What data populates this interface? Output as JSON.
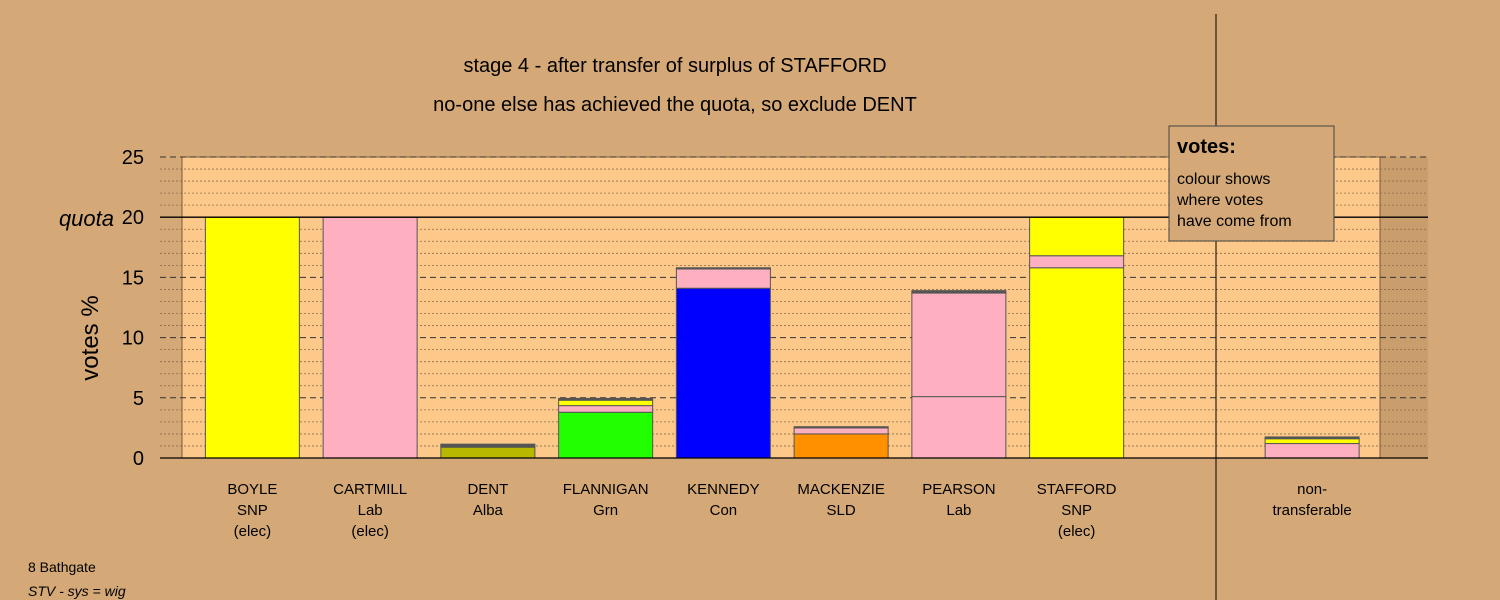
{
  "colors": {
    "background": "#d4a977",
    "plot_area": "#fcc98a",
    "side_shade": "#c99d6c",
    "SNP": "#ffff00",
    "Lab": "#ffb0c0",
    "Alba": "#b8b800",
    "Grn": "#22ff00",
    "Con": "#0000ff",
    "SLD": "#ff9000",
    "bar_top": "#555555"
  },
  "chart_data": {
    "type": "bar",
    "stacked": true,
    "title": "stage 4 - after transfer of surplus of STAFFORD",
    "subtitle": "no-one else has achieved the quota, so exclude DENT",
    "ylabel": "votes %",
    "ylim": [
      0,
      25
    ],
    "yticks": [
      "0",
      "5",
      "10",
      "15",
      "20",
      "25"
    ],
    "quota": 20,
    "quota_label": "quota",
    "grid": true,
    "categories": [
      {
        "lines": [
          "BOYLE",
          "SNP",
          "(elec)"
        ]
      },
      {
        "lines": [
          "CARTMILL",
          "Lab",
          "(elec)"
        ]
      },
      {
        "lines": [
          "DENT",
          "Alba"
        ]
      },
      {
        "lines": [
          "FLANNIGAN",
          "Grn"
        ]
      },
      {
        "lines": [
          "KENNEDY",
          "Con"
        ]
      },
      {
        "lines": [
          "MACKENZIE",
          "SLD"
        ]
      },
      {
        "lines": [
          "PEARSON",
          "Lab"
        ]
      },
      {
        "lines": [
          "STAFFORD",
          "SNP",
          "(elec)"
        ]
      },
      {
        "lines": []
      },
      {
        "lines": [
          "non-",
          "transferable"
        ]
      }
    ],
    "stacks": [
      [
        {
          "party": "SNP",
          "value": 20.0
        }
      ],
      [
        {
          "party": "Lab",
          "value": 20.0
        }
      ],
      [
        {
          "party": "Alba",
          "value": 0.9
        },
        {
          "party": "bar_top",
          "value": 0.25
        }
      ],
      [
        {
          "party": "Grn",
          "value": 3.8
        },
        {
          "party": "Lab",
          "value": 0.55
        },
        {
          "party": "SNP",
          "value": 0.45
        },
        {
          "party": "bar_top",
          "value": 0.15
        }
      ],
      [
        {
          "party": "Con",
          "value": 14.1
        },
        {
          "party": "Lab",
          "value": 1.6
        },
        {
          "party": "bar_top",
          "value": 0.1
        }
      ],
      [
        {
          "party": "SLD",
          "value": 2.0
        },
        {
          "party": "Lab",
          "value": 0.5
        },
        {
          "party": "bar_top",
          "value": 0.1
        }
      ],
      [
        {
          "party": "Lab",
          "value": 5.1
        },
        {
          "party": "Lab",
          "value": 8.6
        },
        {
          "party": "bar_top",
          "value": 0.2
        }
      ],
      [
        {
          "party": "SNP",
          "value": 15.8
        },
        {
          "party": "Lab",
          "value": 1.0
        },
        {
          "party": "SNP",
          "value": 3.2
        }
      ],
      [],
      [
        {
          "party": "Lab",
          "value": 1.2
        },
        {
          "party": "SNP",
          "value": 0.4
        },
        {
          "party": "bar_top",
          "value": 0.15
        }
      ]
    ],
    "legend": {
      "title": "votes:",
      "lines": [
        "colour shows",
        "where votes",
        "have come from"
      ]
    }
  },
  "footer": {
    "constituency": "8 Bathgate",
    "system": "STV - sys = wig"
  }
}
